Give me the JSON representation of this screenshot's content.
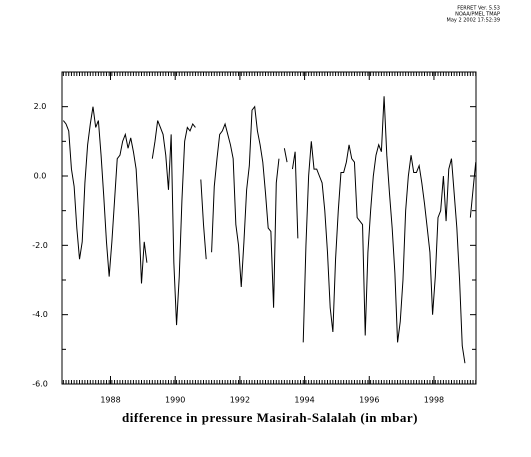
{
  "header": [
    "FERRET Ver. 5.53",
    "NOAA/PMEL TMAP",
    "May  2 2002 17:52:39"
  ],
  "chart_data": {
    "type": "line",
    "xlabel": "difference in pressure Masirah-Salalah (in mbar)",
    "xlim": [
      1986.5,
      1999.3
    ],
    "ylim": [
      -6,
      3
    ],
    "xticks": [
      1988,
      1990,
      1992,
      1994,
      1996,
      1998
    ],
    "yticks": [
      {
        "value": 2,
        "label": "2.0"
      },
      {
        "value": 0,
        "label": "0.0"
      },
      {
        "value": -2,
        "label": "-2.0"
      },
      {
        "value": -4,
        "label": "-4.0"
      },
      {
        "value": -6,
        "label": "-6.0"
      }
    ],
    "yminorticks": [
      3,
      1,
      -1,
      -3,
      -5
    ],
    "x": [
      1986.542,
      1986.625,
      1986.708,
      1986.792,
      1986.875,
      1986.958,
      1987.042,
      1987.125,
      1987.208,
      1987.292,
      1987.375,
      1987.458,
      1987.542,
      1987.625,
      1987.708,
      1987.792,
      1987.875,
      1987.958,
      1988.042,
      1988.125,
      1988.208,
      1988.292,
      1988.375,
      1988.458,
      1988.542,
      1988.625,
      1988.708,
      1988.792,
      1988.875,
      1988.958,
      1989.042,
      1989.125,
      1989.208,
      1989.292,
      1989.375,
      1989.458,
      1989.542,
      1989.625,
      1989.708,
      1989.792,
      1989.875,
      1989.958,
      1990.042,
      1990.125,
      1990.208,
      1990.292,
      1990.375,
      1990.458,
      1990.542,
      1990.625,
      1990.708,
      1990.792,
      1990.875,
      1990.958,
      1991.042,
      1991.125,
      1991.208,
      1991.292,
      1991.375,
      1991.458,
      1991.542,
      1991.625,
      1991.708,
      1991.792,
      1991.875,
      1991.958,
      1992.042,
      1992.125,
      1992.208,
      1992.292,
      1992.375,
      1992.458,
      1992.542,
      1992.625,
      1992.708,
      1992.792,
      1992.875,
      1992.958,
      1993.042,
      1993.125,
      1993.208,
      1993.292,
      1993.375,
      1993.458,
      1993.542,
      1993.625,
      1993.708,
      1993.792,
      1993.875,
      1993.958,
      1994.042,
      1994.125,
      1994.208,
      1994.292,
      1994.375,
      1994.458,
      1994.542,
      1994.625,
      1994.708,
      1994.792,
      1994.875,
      1994.958,
      1995.042,
      1995.125,
      1995.208,
      1995.292,
      1995.375,
      1995.458,
      1995.542,
      1995.625,
      1995.708,
      1995.792,
      1995.875,
      1995.958,
      1996.042,
      1996.125,
      1996.208,
      1996.292,
      1996.375,
      1996.458,
      1996.542,
      1996.625,
      1996.708,
      1996.792,
      1996.875,
      1996.958,
      1997.042,
      1997.125,
      1997.208,
      1997.292,
      1997.375,
      1997.458,
      1997.542,
      1997.625,
      1997.708,
      1997.792,
      1997.875,
      1997.958,
      1998.042,
      1998.125,
      1998.208,
      1998.292,
      1998.375,
      1998.458,
      1998.542,
      1998.625,
      1998.708,
      1998.792,
      1998.875,
      1998.958,
      1999.042,
      1999.125,
      1999.208,
      1999.292
    ],
    "series": [
      {
        "color": "#000000",
        "values": [
          1.6,
          1.5,
          1.3,
          0.2,
          -0.3,
          -1.5,
          -2.4,
          -1.9,
          -0.2,
          0.9,
          1.5,
          2.0,
          1.4,
          1.6,
          0.6,
          -0.6,
          -1.9,
          -2.9,
          -1.9,
          -0.7,
          0.5,
          0.6,
          1.0,
          1.2,
          0.8,
          1.1,
          0.7,
          0.2,
          -1.2,
          -3.1,
          -1.9,
          -2.5,
          null,
          0.5,
          1.0,
          1.6,
          1.4,
          1.2,
          0.6,
          -0.4,
          1.2,
          -2.5,
          -4.3,
          -2.9,
          -0.7,
          1.0,
          1.4,
          1.3,
          1.5,
          1.4,
          null,
          -0.1,
          -1.4,
          -2.4,
          null,
          -2.2,
          -0.3,
          0.5,
          1.2,
          1.3,
          1.5,
          1.2,
          0.9,
          0.5,
          -1.4,
          -2.0,
          -3.2,
          -1.9,
          -0.4,
          0.3,
          1.9,
          2.0,
          1.3,
          0.9,
          0.4,
          -0.5,
          -1.5,
          -1.6,
          -3.8,
          -0.2,
          0.5,
          null,
          0.8,
          0.4,
          null,
          0.2,
          0.7,
          -1.8,
          null,
          -4.8,
          -2.0,
          0.0,
          1.0,
          0.2,
          0.2,
          0.0,
          -0.2,
          -1.0,
          -2.2,
          -3.8,
          -4.5,
          -2.4,
          -1.0,
          0.1,
          0.1,
          0.4,
          0.9,
          0.5,
          0.4,
          -1.2,
          -1.3,
          -1.4,
          -4.6,
          -2.2,
          -1.0,
          0.0,
          0.6,
          0.9,
          0.7,
          2.3,
          0.6,
          -0.5,
          -1.5,
          -2.8,
          -4.8,
          -4.2,
          -3.0,
          -1.0,
          0.0,
          0.6,
          0.1,
          0.1,
          0.3,
          -0.2,
          -0.8,
          -1.5,
          -2.2,
          -4.0,
          -2.9,
          -1.2,
          -1.0,
          0.0,
          -1.3,
          0.2,
          0.5,
          -0.5,
          -1.5,
          -3.0,
          -4.9,
          -5.4,
          null,
          -1.2,
          -0.4,
          0.4
        ]
      }
    ]
  }
}
